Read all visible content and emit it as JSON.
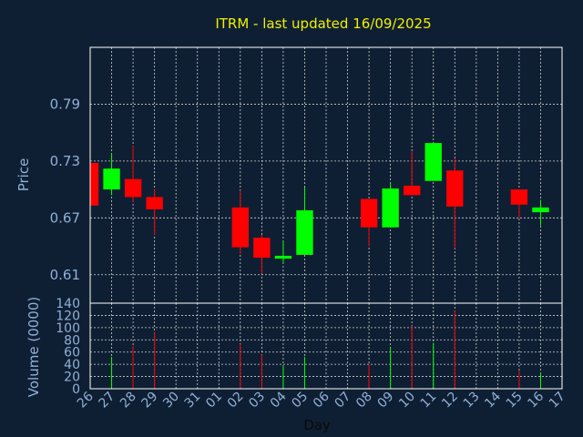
{
  "chart_data": {
    "type": "candlestick",
    "title": "ITRM - last updated 16/09/2025",
    "price_panel": {
      "ylabel": "Price",
      "ylim": [
        0.58,
        0.85
      ],
      "yticks": [
        "0.61",
        "0.67",
        "0.73",
        "0.79"
      ],
      "ytick_values": [
        0.61,
        0.67,
        0.73,
        0.79
      ],
      "grid": true
    },
    "volume_panel": {
      "ylabel": "Volume (0000)",
      "ylim": [
        0,
        140
      ],
      "yticks": [
        "0",
        "20",
        "40",
        "60",
        "80",
        "100",
        "120",
        "140"
      ],
      "ytick_values": [
        0,
        20,
        40,
        60,
        80,
        100,
        120,
        140
      ],
      "grid": true
    },
    "xlabel": "Day",
    "x_ticks": [
      "26",
      "27",
      "28",
      "29",
      "30",
      "31",
      "01",
      "02",
      "03",
      "04",
      "05",
      "06",
      "07",
      "08",
      "09",
      "10",
      "11",
      "12",
      "13",
      "14",
      "15",
      "16",
      "17"
    ],
    "colors": {
      "up": "#00ff00",
      "down": "#ff0000",
      "background": "#0f1f33",
      "grid": "#cfcfcf",
      "title": "#f0f000",
      "axis": "#8fb0d8"
    },
    "candles": [
      {
        "x": 0,
        "open": 0.728,
        "close": 0.683,
        "high": 0.732,
        "low": 0.68,
        "volume": 0
      },
      {
        "x": 1,
        "open": 0.7,
        "close": 0.722,
        "high": 0.738,
        "low": 0.694,
        "volume": 52
      },
      {
        "x": 2,
        "open": 0.711,
        "close": 0.692,
        "high": 0.746,
        "low": 0.687,
        "volume": 70
      },
      {
        "x": 3,
        "open": 0.692,
        "close": 0.679,
        "high": 0.7,
        "low": 0.652,
        "volume": 92
      },
      {
        "x": 7,
        "open": 0.681,
        "close": 0.639,
        "high": 0.699,
        "low": 0.632,
        "volume": 73
      },
      {
        "x": 8,
        "open": 0.649,
        "close": 0.628,
        "high": 0.652,
        "low": 0.611,
        "volume": 56
      },
      {
        "x": 9,
        "open": 0.627,
        "close": 0.63,
        "high": 0.645,
        "low": 0.622,
        "volume": 38
      },
      {
        "x": 10,
        "open": 0.631,
        "close": 0.678,
        "high": 0.702,
        "low": 0.631,
        "volume": 52
      },
      {
        "x": 13,
        "open": 0.69,
        "close": 0.66,
        "high": 0.69,
        "low": 0.64,
        "volume": 40
      },
      {
        "x": 14,
        "open": 0.66,
        "close": 0.701,
        "high": 0.707,
        "low": 0.66,
        "volume": 68
      },
      {
        "x": 15,
        "open": 0.704,
        "close": 0.694,
        "high": 0.74,
        "low": 0.694,
        "volume": 103
      },
      {
        "x": 16,
        "open": 0.709,
        "close": 0.749,
        "high": 0.749,
        "low": 0.709,
        "volume": 75
      },
      {
        "x": 17,
        "open": 0.72,
        "close": 0.682,
        "high": 0.733,
        "low": 0.638,
        "volume": 128
      },
      {
        "x": 20,
        "open": 0.7,
        "close": 0.684,
        "high": 0.7,
        "low": 0.67,
        "volume": 30
      },
      {
        "x": 21,
        "open": 0.676,
        "close": 0.681,
        "high": 0.689,
        "low": 0.662,
        "volume": 27
      }
    ]
  }
}
